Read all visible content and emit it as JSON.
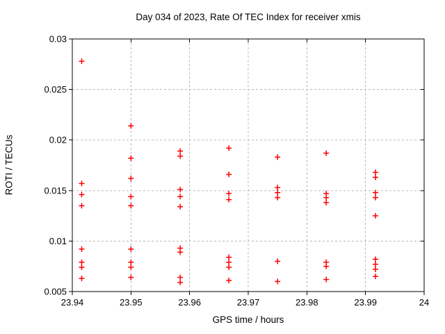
{
  "chart_data": {
    "type": "scatter",
    "title": "Day 034 of 2023, Rate Of TEC Index for receiver xmis",
    "xlabel": "GPS time / hours",
    "ylabel": "ROTI / TECUs",
    "xlim": [
      23.94,
      24
    ],
    "ylim": [
      0.005,
      0.03
    ],
    "xticks": [
      23.94,
      23.95,
      23.96,
      23.97,
      23.98,
      23.99,
      24
    ],
    "xtick_labels": [
      "23.94",
      "23.95",
      "23.96",
      "23.97",
      "23.98",
      "23.99",
      "24"
    ],
    "yticks": [
      0.005,
      0.01,
      0.015,
      0.02,
      0.025,
      0.03
    ],
    "ytick_labels": [
      "0.005",
      "0.01",
      "0.015",
      "0.02",
      "0.025",
      "0.03"
    ],
    "grid": true,
    "legend": "none",
    "marker": "plus",
    "colors": {
      "marker": "#ff0000",
      "grid": "#b8b8b8",
      "axis": "#000000",
      "text": "#000000",
      "background": "#ffffff"
    },
    "points": [
      [
        23.9416,
        0.0278
      ],
      [
        23.9416,
        0.0157
      ],
      [
        23.9416,
        0.0146
      ],
      [
        23.9416,
        0.0135
      ],
      [
        23.9416,
        0.0092
      ],
      [
        23.9416,
        0.0079
      ],
      [
        23.9416,
        0.0074
      ],
      [
        23.9416,
        0.0063
      ],
      [
        23.95,
        0.0214
      ],
      [
        23.95,
        0.0182
      ],
      [
        23.95,
        0.0162
      ],
      [
        23.95,
        0.0144
      ],
      [
        23.95,
        0.0135
      ],
      [
        23.95,
        0.0092
      ],
      [
        23.95,
        0.0079
      ],
      [
        23.95,
        0.0074
      ],
      [
        23.95,
        0.0064
      ],
      [
        23.9584,
        0.0189
      ],
      [
        23.9584,
        0.0184
      ],
      [
        23.9584,
        0.0151
      ],
      [
        23.9584,
        0.0144
      ],
      [
        23.9584,
        0.0134
      ],
      [
        23.9584,
        0.0093
      ],
      [
        23.9584,
        0.0089
      ],
      [
        23.9584,
        0.0064
      ],
      [
        23.9584,
        0.0059
      ],
      [
        23.9667,
        0.0192
      ],
      [
        23.9667,
        0.0166
      ],
      [
        23.9667,
        0.0147
      ],
      [
        23.9667,
        0.0141
      ],
      [
        23.9667,
        0.0084
      ],
      [
        23.9667,
        0.0079
      ],
      [
        23.9667,
        0.0074
      ],
      [
        23.9667,
        0.0061
      ],
      [
        23.975,
        0.0183
      ],
      [
        23.975,
        0.0153
      ],
      [
        23.975,
        0.0148
      ],
      [
        23.975,
        0.0143
      ],
      [
        23.975,
        0.008
      ],
      [
        23.975,
        0.006
      ],
      [
        23.9833,
        0.0187
      ],
      [
        23.9833,
        0.0147
      ],
      [
        23.9833,
        0.0143
      ],
      [
        23.9833,
        0.0138
      ],
      [
        23.9833,
        0.0079
      ],
      [
        23.9833,
        0.0075
      ],
      [
        23.9833,
        0.0062
      ],
      [
        23.9917,
        0.0168
      ],
      [
        23.9917,
        0.0163
      ],
      [
        23.9917,
        0.0148
      ],
      [
        23.9917,
        0.0143
      ],
      [
        23.9917,
        0.0125
      ],
      [
        23.9917,
        0.0082
      ],
      [
        23.9917,
        0.0077
      ],
      [
        23.9917,
        0.0072
      ],
      [
        23.9917,
        0.0065
      ]
    ]
  }
}
